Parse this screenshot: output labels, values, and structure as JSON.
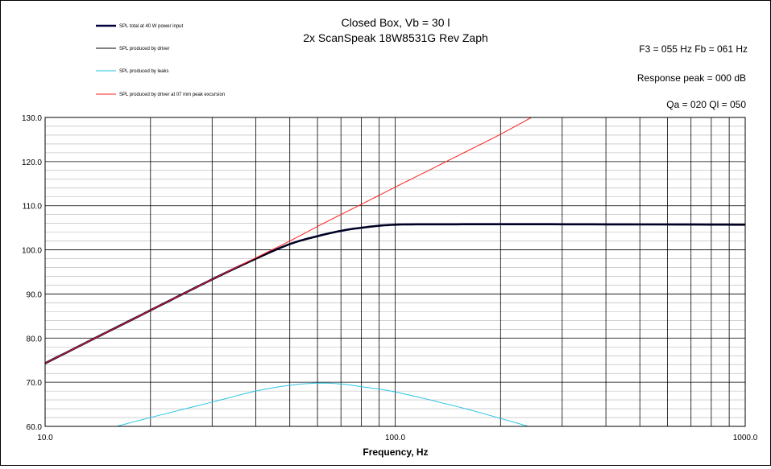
{
  "chart_data": {
    "type": "line",
    "title": "Closed Box, Vb = 30 l",
    "subtitle": "2x ScanSpeak 18W8531G Rev Zaph",
    "xlabel": "Frequency, Hz",
    "ylabel": "",
    "x_scale": "log",
    "xlim": [
      10,
      1000
    ],
    "ylim": [
      60,
      130
    ],
    "grid": true,
    "legend_position": "top-left",
    "x_tick_labels": [
      "10.0",
      "100.0",
      "1000.0"
    ],
    "y_tick_labels": [
      "60.0",
      "70.0",
      "80.0",
      "90.0",
      "100.0",
      "110.0",
      "120.0",
      "130.0"
    ],
    "annotations": [
      "F3 = 055 Hz  Fb = 061 Hz",
      "Response peak = 000 dB",
      "Qa = 020  Ql = 050"
    ],
    "series": [
      {
        "name": "SPL total at 40 W power input",
        "color": "#000040",
        "points": [
          [
            10,
            74.3
          ],
          [
            20,
            86.3
          ],
          [
            30,
            93.3
          ],
          [
            40,
            98.0
          ],
          [
            50,
            101.3
          ],
          [
            60,
            103.1
          ],
          [
            70,
            104.3
          ],
          [
            80,
            105.0
          ],
          [
            100,
            105.7
          ],
          [
            150,
            105.8
          ],
          [
            300,
            105.8
          ],
          [
            1000,
            105.7
          ]
        ]
      },
      {
        "name": "SPL produced by driver",
        "color": "#000000",
        "points": [
          [
            10,
            74.3
          ],
          [
            20,
            86.3
          ],
          [
            30,
            93.3
          ],
          [
            40,
            98.0
          ],
          [
            50,
            101.3
          ],
          [
            60,
            103.1
          ],
          [
            70,
            104.3
          ],
          [
            80,
            105.0
          ],
          [
            100,
            105.7
          ],
          [
            150,
            105.8
          ],
          [
            300,
            105.8
          ],
          [
            1000,
            105.7
          ]
        ]
      },
      {
        "name": "SPL produced by leaks",
        "color": "#29c5e6",
        "points": [
          [
            16,
            60.0
          ],
          [
            20,
            62.0
          ],
          [
            30,
            65.5
          ],
          [
            40,
            68.0
          ],
          [
            50,
            69.3
          ],
          [
            60,
            69.8
          ],
          [
            70,
            69.6
          ],
          [
            80,
            69.0
          ],
          [
            100,
            67.8
          ],
          [
            150,
            64.5
          ],
          [
            200,
            61.8
          ],
          [
            240,
            60.0
          ]
        ]
      },
      {
        "name": "SPL produced by driver at 07 mm peak excursion",
        "color": "#ff2020",
        "points": [
          [
            10,
            74.3
          ],
          [
            20,
            86.3
          ],
          [
            30,
            93.3
          ],
          [
            40,
            98.2
          ],
          [
            50,
            102.0
          ],
          [
            60,
            105.3
          ],
          [
            70,
            108.0
          ],
          [
            80,
            110.3
          ],
          [
            100,
            114.2
          ],
          [
            150,
            121.2
          ],
          [
            200,
            126.2
          ],
          [
            245,
            130.0
          ]
        ]
      }
    ]
  }
}
